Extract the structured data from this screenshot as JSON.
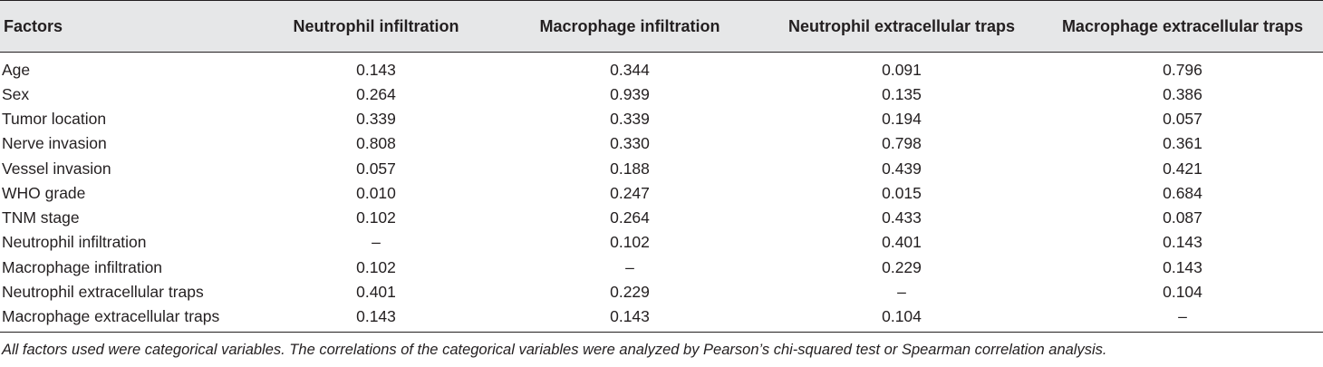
{
  "table": {
    "headers": [
      "Factors",
      "Neutrophil infiltration",
      "Macrophage infiltration",
      "Neutrophil extracellular traps",
      "Macrophage extracellular traps"
    ],
    "rows": [
      [
        "Age",
        "0.143",
        "0.344",
        "0.091",
        "0.796"
      ],
      [
        "Sex",
        "0.264",
        "0.939",
        "0.135",
        "0.386"
      ],
      [
        "Tumor location",
        "0.339",
        "0.339",
        "0.194",
        "0.057"
      ],
      [
        "Nerve invasion",
        "0.808",
        "0.330",
        "0.798",
        "0.361"
      ],
      [
        "Vessel invasion",
        "0.057",
        "0.188",
        "0.439",
        "0.421"
      ],
      [
        "WHO grade",
        "0.010",
        "0.247",
        "0.015",
        "0.684"
      ],
      [
        "TNM stage",
        "0.102",
        "0.264",
        "0.433",
        "0.087"
      ],
      [
        "Neutrophil infiltration",
        "–",
        "0.102",
        "0.401",
        "0.143"
      ],
      [
        "Macrophage infiltration",
        "0.102",
        "–",
        "0.229",
        "0.143"
      ],
      [
        "Neutrophil extracellular traps",
        "0.401",
        "0.229",
        "–",
        "0.104"
      ],
      [
        "Macrophage extracellular traps",
        "0.143",
        "0.143",
        "0.104",
        "–"
      ]
    ]
  },
  "footnote": "All factors used were categorical variables. The correlations of the categorical variables were analyzed by Pearson’s chi-squared test or Spearman correlation analysis."
}
